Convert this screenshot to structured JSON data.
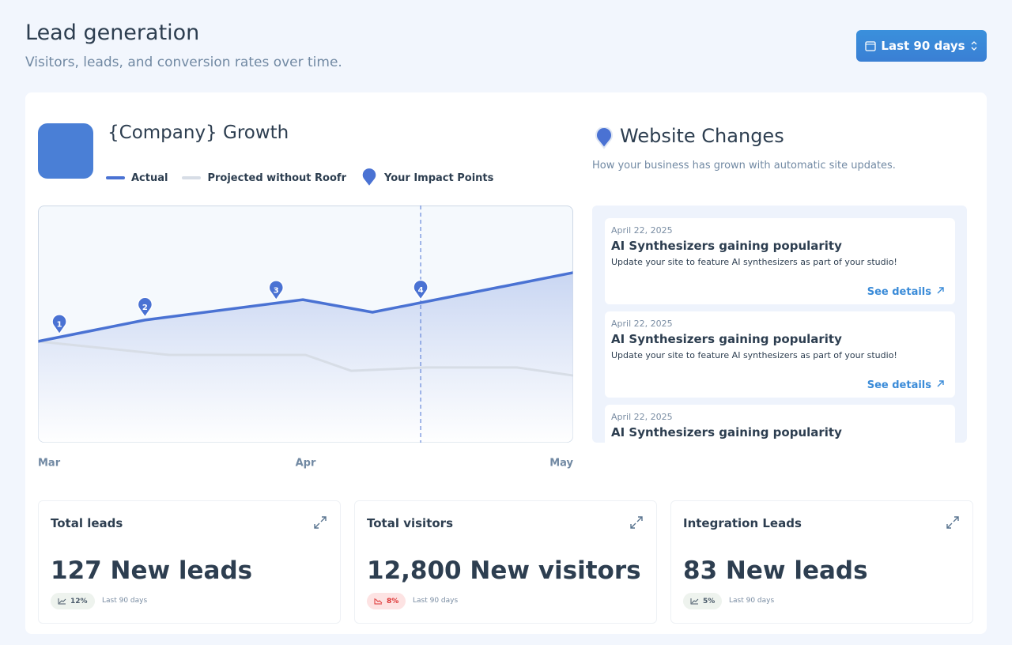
{
  "header": {
    "title": "Lead generation",
    "subtitle": "Visitors, leads, and conversion rates over time.",
    "date_range": "Last 90 days"
  },
  "growth": {
    "title": "{Company} Growth",
    "impact_points_name": "Your Impact Points"
  },
  "chart_data": {
    "type": "line",
    "series": [
      {
        "name": "Actual",
        "color": "#4a72d3",
        "x": [
          0,
          0.4,
          0.99,
          1.25,
          2
        ],
        "values": [
          42.7,
          51.7,
          60.3,
          55,
          71.7
        ]
      },
      {
        "name": "Projected without Roofr",
        "color": "#d7dde6",
        "x": [
          0,
          0.49,
          1,
          1.17,
          1.45,
          1.79,
          2
        ],
        "values": [
          42.7,
          37,
          37,
          30.3,
          31.7,
          31.7,
          28.3
        ]
      }
    ],
    "impact_points": [
      {
        "label": "1",
        "x": 0.08
      },
      {
        "label": "2",
        "x": 0.4
      },
      {
        "label": "3",
        "x": 0.89
      },
      {
        "label": "4",
        "x": 1.43
      }
    ],
    "xlim": [
      0,
      2
    ],
    "ylim": [
      0,
      100
    ],
    "xticks": [
      {
        "value": 0,
        "label": "Mar"
      },
      {
        "value": 1,
        "label": "Apr"
      },
      {
        "value": 2,
        "label": "May"
      }
    ]
  },
  "changes": {
    "title": "Website Changes",
    "subtitle": "How your business has grown with automatic site updates.",
    "items": [
      {
        "date": "April 22, 2025",
        "title": "AI Synthesizers gaining popularity",
        "description": "Update your site to feature AI synthesizers as part of your studio!",
        "link": "See details"
      },
      {
        "date": "April 22, 2025",
        "title": "AI Synthesizers gaining popularity",
        "description": "Update your site to feature AI synthesizers as part of your studio!",
        "link": "See details"
      },
      {
        "date": "April 22, 2025",
        "title": "AI Synthesizers gaining popularity"
      }
    ]
  },
  "stats": [
    {
      "title": "Total leads",
      "value": "127 New leads",
      "change": "12%",
      "period": "Last 90 days",
      "trend": "up"
    },
    {
      "title": "Total visitors",
      "value": "12,800 New visitors",
      "change": "8%",
      "period": "Last 90 days",
      "trend": "down"
    },
    {
      "title": "Integration Leads",
      "value": "83 New leads",
      "change": "5%",
      "period": "Last 90 days",
      "trend": "up"
    }
  ]
}
